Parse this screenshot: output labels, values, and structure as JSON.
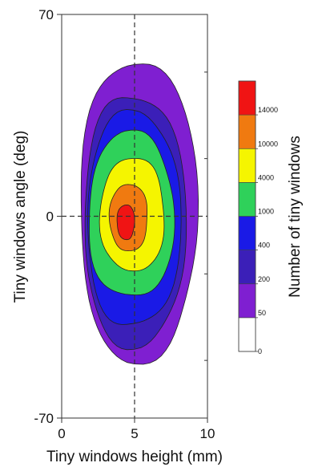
{
  "chart_data": {
    "type": "contour",
    "xlabel": "Tiny windows height (mm)",
    "ylabel": "Tiny windows angle (deg)",
    "xlim": [
      0,
      10
    ],
    "ylim": [
      -70,
      70
    ],
    "x_ticks": [
      {
        "value": 0,
        "label": "0"
      },
      {
        "value": 5,
        "label": "5"
      },
      {
        "value": 10,
        "label": "10"
      }
    ],
    "y_ticks": [
      {
        "value": 70,
        "label": "70"
      },
      {
        "value": 0,
        "label": "0"
      },
      {
        "value": -70,
        "label": "-70"
      }
    ],
    "reference_lines": {
      "x": 5,
      "y": 0
    },
    "colorbar": {
      "label": "Number of tiny windows",
      "levels": [
        {
          "value": 0,
          "label": "0",
          "color": "#ffffff"
        },
        {
          "value": 50,
          "label": "50",
          "color": "#7f1fd1"
        },
        {
          "value": 200,
          "label": "200",
          "color": "#3b1fb8"
        },
        {
          "value": 400,
          "label": "400",
          "color": "#1a1ae6"
        },
        {
          "value": 1000,
          "label": "1000",
          "color": "#2fd15a"
        },
        {
          "value": 4000,
          "label": "4000",
          "color": "#f5f500"
        },
        {
          "value": 10000,
          "label": "10000",
          "color": "#f07a10"
        },
        {
          "value": 14000,
          "label": "14000",
          "color": "#f01414"
        }
      ]
    },
    "contours": [
      {
        "level": 50,
        "color": "#7f1fd1",
        "cx": 5.0,
        "cy": 0,
        "rx_left": 3.7,
        "rx_right": 4.3,
        "ry_top": 54,
        "ry_bottom": 50
      },
      {
        "level": 200,
        "color": "#3b1fb8",
        "cx": 4.95,
        "cy": -2,
        "rx_left": 3.4,
        "rx_right": 3.55,
        "ry_top": 44,
        "ry_bottom": 43
      },
      {
        "level": 400,
        "color": "#1a1ae6",
        "cx": 4.9,
        "cy": -2,
        "rx_left": 3.15,
        "rx_right": 3.25,
        "ry_top": 38,
        "ry_bottom": 36
      },
      {
        "level": 1000,
        "color": "#2fd15a",
        "cx": 4.75,
        "cy": -1,
        "rx_left": 2.9,
        "rx_right": 2.95,
        "ry_top": 30,
        "ry_bottom": 27
      },
      {
        "level": 4000,
        "color": "#f5f500",
        "cx": 4.85,
        "cy": 0,
        "rx_left": 2.2,
        "rx_right": 2.2,
        "ry_top": 20,
        "ry_bottom": 19
      },
      {
        "level": 10000,
        "color": "#f07a10",
        "cx": 4.55,
        "cy": 0,
        "rx_left": 1.25,
        "rx_right": 1.35,
        "ry_top": 11,
        "ry_bottom": 12
      },
      {
        "level": 14000,
        "color": "#f01414",
        "cx": 4.4,
        "cy": -2,
        "rx_left": 0.6,
        "rx_right": 0.6,
        "ry_top": 6,
        "ry_bottom": 6
      }
    ]
  }
}
